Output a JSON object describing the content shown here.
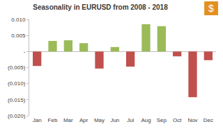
{
  "chart_data": {
    "type": "bar",
    "title": "Seasonality in EURUSD from 2008 - 2018",
    "categories": [
      "Jan",
      "Feb",
      "Mar",
      "Apr",
      "May",
      "Jun",
      "Jul",
      "Aug",
      "Sep",
      "Oct",
      "Nov",
      "Dec"
    ],
    "values": [
      -0.0045,
      0.0033,
      0.0035,
      0.0026,
      -0.0053,
      0.0014,
      -0.0047,
      0.0085,
      0.0079,
      -0.0015,
      -0.0142,
      -0.0027
    ],
    "colors": [
      "#c0504d",
      "#9bbb59",
      "#9bbb59",
      "#9bbb59",
      "#c0504d",
      "#9bbb59",
      "#c0504d",
      "#9bbb59",
      "#9bbb59",
      "#c0504d",
      "#c0504d",
      "#c0504d"
    ],
    "ylim": [
      -0.02,
      0.01
    ],
    "yticks": [
      {
        "value": 0.01,
        "label": "0.010"
      },
      {
        "value": 0.005,
        "label": "0.005"
      },
      {
        "value": 0,
        "label": "-"
      },
      {
        "value": -0.005,
        "label": "(0.005)"
      },
      {
        "value": -0.01,
        "label": "(0.010)"
      },
      {
        "value": -0.015,
        "label": "(0.015)"
      },
      {
        "value": -0.02,
        "label": "(0.020)"
      }
    ],
    "grid": false,
    "annotations": [
      "$"
    ]
  }
}
